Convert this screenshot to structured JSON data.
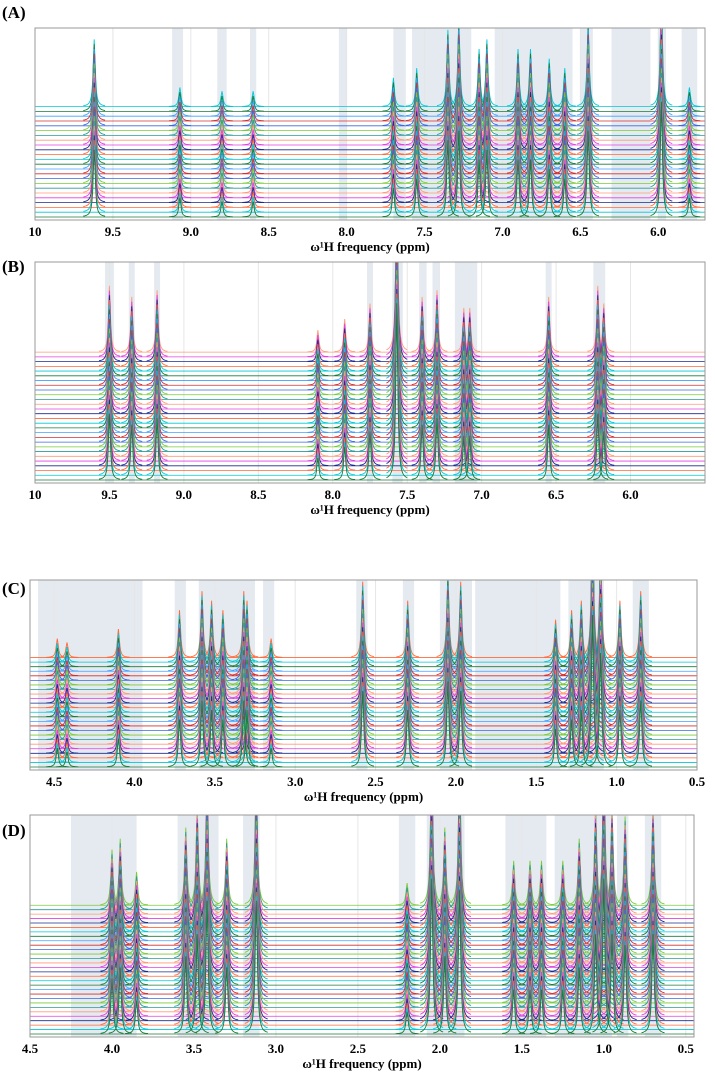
{
  "chart_data": [
    {
      "type": "line",
      "panel_label": "(A)",
      "x_label": "ω¹H frequency (ppm)",
      "xlim": [
        10,
        5.7
      ],
      "xticks": [
        10,
        9.5,
        {
          "value": 9,
          "label": "9.0"
        },
        8.5,
        {
          "value": 8,
          "label": "8.0"
        },
        7.5,
        {
          "value": 7,
          "label": "7.0"
        },
        6.5,
        {
          "value": 6,
          "label": "6.0"
        }
      ],
      "ylim": [
        0,
        1
      ],
      "grid": true,
      "highlight_regions": [
        [
          9.12,
          9.05
        ],
        [
          8.83,
          8.77
        ],
        [
          8.62,
          8.58
        ],
        [
          8.05,
          8.0
        ],
        [
          7.7,
          7.62
        ],
        [
          7.58,
          7.2
        ],
        [
          7.05,
          6.55
        ],
        [
          6.5,
          6.42
        ],
        [
          6.3,
          6.05
        ],
        [
          6.0,
          5.95
        ],
        [
          5.85,
          5.75
        ]
      ],
      "peaks": {
        "x": [
          9.62,
          9.07,
          8.8,
          8.6,
          7.7,
          7.55,
          7.35,
          7.28,
          7.15,
          7.1,
          6.9,
          6.82,
          6.7,
          6.6,
          6.45,
          5.98,
          5.8
        ],
        "values": [
          0.35,
          0.1,
          0.08,
          0.08,
          0.15,
          0.2,
          0.4,
          0.45,
          0.3,
          0.35,
          0.3,
          0.3,
          0.25,
          0.2,
          0.45,
          0.6,
          0.1
        ]
      },
      "trace_colors": [
        "#1a7a3a",
        "#00c8d8",
        "#ff6a3a",
        "#1b2a8c",
        "#e040e0",
        "#ff9a7a",
        "#2a9a9a",
        "#7acb3a",
        "#3a6ae0",
        "#d03030",
        "#40a0ff",
        "#1a7a3a",
        "#00c8d8",
        "#ff6a3a",
        "#1b2a8c",
        "#e040e0",
        "#ff9a7a",
        "#2a9a9a",
        "#7acb3a",
        "#3a6ae0",
        "#d03030",
        "#40a0ff",
        "#1a7a3a",
        "#00c8d8"
      ]
    },
    {
      "type": "line",
      "panel_label": "(B)",
      "x_label": "ω¹H frequency (ppm)",
      "xlim": [
        10,
        5.5
      ],
      "xticks": [
        10,
        9.5,
        {
          "value": 9,
          "label": "9.0"
        },
        8.5,
        {
          "value": 8,
          "label": "8.0"
        },
        7.5,
        {
          "value": 7,
          "label": "7.0"
        },
        6.5,
        {
          "value": 6,
          "label": "6.0"
        }
      ],
      "ylim": [
        0,
        1
      ],
      "grid": true,
      "highlight_regions": [
        [
          9.53,
          9.47
        ],
        [
          9.37,
          9.33
        ],
        [
          9.2,
          9.16
        ],
        [
          7.77,
          7.73
        ],
        [
          7.6,
          7.53
        ],
        [
          7.42,
          7.37
        ],
        [
          7.33,
          7.28
        ],
        [
          7.18,
          7.03
        ],
        [
          6.57,
          6.53
        ],
        [
          6.25,
          6.17
        ]
      ],
      "peaks": {
        "x": [
          9.5,
          9.35,
          9.18,
          8.1,
          7.92,
          7.75,
          7.57,
          7.4,
          7.3,
          7.12,
          7.08,
          6.55,
          6.22,
          6.18
        ],
        "values": [
          0.3,
          0.25,
          0.28,
          0.1,
          0.15,
          0.22,
          0.8,
          0.25,
          0.28,
          0.2,
          0.2,
          0.25,
          0.3,
          0.22
        ]
      },
      "trace_colors": [
        "#1a7a3a",
        "#00c8d8",
        "#ff6a3a",
        "#1b2a8c",
        "#e040e0",
        "#ff9a7a",
        "#2a9a9a",
        "#7acb3a",
        "#3a6ae0",
        "#d03030",
        "#40a0ff",
        "#1a7a3a",
        "#00c8d8",
        "#ff6a3a",
        "#1b2a8c",
        "#e040e0",
        "#ff9a7a",
        "#2a9a9a",
        "#7acb3a",
        "#3a6ae0",
        "#d03030",
        "#40a0ff",
        "#1a7a3a",
        "#00c8d8",
        "#ff6a3a",
        "#1b2a8c",
        "#e040e0",
        "#ff9a7a"
      ]
    },
    {
      "type": "line",
      "panel_label": "(C)",
      "x_label": "ω¹H frequency (ppm)",
      "xlim": [
        4.65,
        0.5
      ],
      "xticks": [
        4.5,
        {
          "value": 4,
          "label": "4.0"
        },
        3.5,
        {
          "value": 3,
          "label": "3.0"
        },
        2.5,
        {
          "value": 2,
          "label": "2.0"
        },
        1.5,
        {
          "value": 1,
          "label": "1.0"
        },
        0.5
      ],
      "ylim": [
        0,
        1
      ],
      "grid": true,
      "highlight_regions": [
        [
          4.6,
          3.95
        ],
        [
          3.75,
          3.68
        ],
        [
          3.6,
          3.25
        ],
        [
          3.2,
          3.13
        ],
        [
          2.62,
          2.55
        ],
        [
          2.33,
          2.26
        ],
        [
          2.1,
          1.9
        ],
        [
          1.88,
          1.35
        ],
        [
          1.3,
          1.08
        ],
        [
          0.9,
          0.8
        ]
      ],
      "peaks": {
        "x": [
          4.48,
          4.42,
          4.1,
          3.72,
          3.58,
          3.52,
          3.45,
          3.32,
          3.3,
          3.15,
          2.58,
          2.3,
          2.05,
          1.97,
          1.38,
          1.28,
          1.22,
          1.15,
          1.1,
          0.98,
          0.85
        ],
        "values": [
          0.1,
          0.08,
          0.15,
          0.25,
          0.35,
          0.3,
          0.25,
          0.35,
          0.3,
          0.1,
          0.4,
          0.3,
          0.45,
          0.4,
          0.2,
          0.25,
          0.3,
          0.8,
          0.6,
          0.3,
          0.35
        ]
      },
      "trace_colors": [
        "#1a7a3a",
        "#00c8d8",
        "#ff6a3a",
        "#1b2a8c",
        "#e040e0",
        "#ff9a7a",
        "#2a9a9a",
        "#7acb3a",
        "#3a6ae0",
        "#d03030",
        "#40a0ff",
        "#1a7a3a",
        "#00c8d8",
        "#ff6a3a",
        "#1b2a8c",
        "#e040e0",
        "#ff9a7a",
        "#2a9a9a",
        "#7acb3a",
        "#3a6ae0",
        "#d03030",
        "#40a0ff",
        "#1a7a3a",
        "#00c8d8",
        "#ff6a3a"
      ]
    },
    {
      "type": "line",
      "panel_label": "(D)",
      "x_label": "ω¹H frequency (ppm)",
      "xlim": [
        4.5,
        0.45
      ],
      "xticks": [
        4.5,
        {
          "value": 4,
          "label": "4.0"
        },
        3.5,
        {
          "value": 3,
          "label": "3.0"
        },
        2.5,
        {
          "value": 2,
          "label": "2.0"
        },
        1.5,
        {
          "value": 1,
          "label": "1.0"
        },
        0.5
      ],
      "ylim": [
        0,
        1
      ],
      "grid": true,
      "highlight_regions": [
        [
          4.25,
          3.85
        ],
        [
          3.6,
          3.35
        ],
        [
          3.2,
          3.1
        ],
        [
          2.25,
          2.15
        ],
        [
          2.08,
          1.85
        ],
        [
          1.6,
          1.35
        ],
        [
          1.3,
          0.95
        ],
        [
          0.92,
          0.85
        ],
        [
          0.75,
          0.65
        ]
      ],
      "peaks": {
        "x": [
          4.0,
          3.95,
          3.85,
          3.55,
          3.48,
          3.42,
          3.3,
          3.12,
          2.2,
          2.05,
          1.97,
          1.88,
          1.55,
          1.45,
          1.38,
          1.25,
          1.15,
          1.05,
          1.0,
          0.95,
          0.87,
          0.7
        ],
        "values": [
          0.25,
          0.3,
          0.15,
          0.35,
          0.45,
          0.6,
          0.3,
          0.6,
          0.1,
          0.7,
          0.35,
          0.65,
          0.2,
          0.2,
          0.2,
          0.2,
          0.3,
          0.45,
          0.7,
          0.45,
          0.4,
          0.45
        ]
      },
      "trace_colors": [
        "#1a7a3a",
        "#00c8d8",
        "#ff6a3a",
        "#1b2a8c",
        "#e040e0",
        "#ff9a7a",
        "#2a9a9a",
        "#7acb3a",
        "#3a6ae0",
        "#d03030",
        "#40a0ff",
        "#1a7a3a",
        "#00c8d8",
        "#ff6a3a",
        "#1b2a8c",
        "#e040e0",
        "#ff9a7a",
        "#2a9a9a",
        "#7acb3a",
        "#3a6ae0",
        "#d03030",
        "#40a0ff",
        "#1a7a3a",
        "#00c8d8",
        "#ff6a3a",
        "#1b2a8c",
        "#e040e0",
        "#ff9a7a",
        "#2a9a9a",
        "#7acb3a"
      ]
    }
  ]
}
